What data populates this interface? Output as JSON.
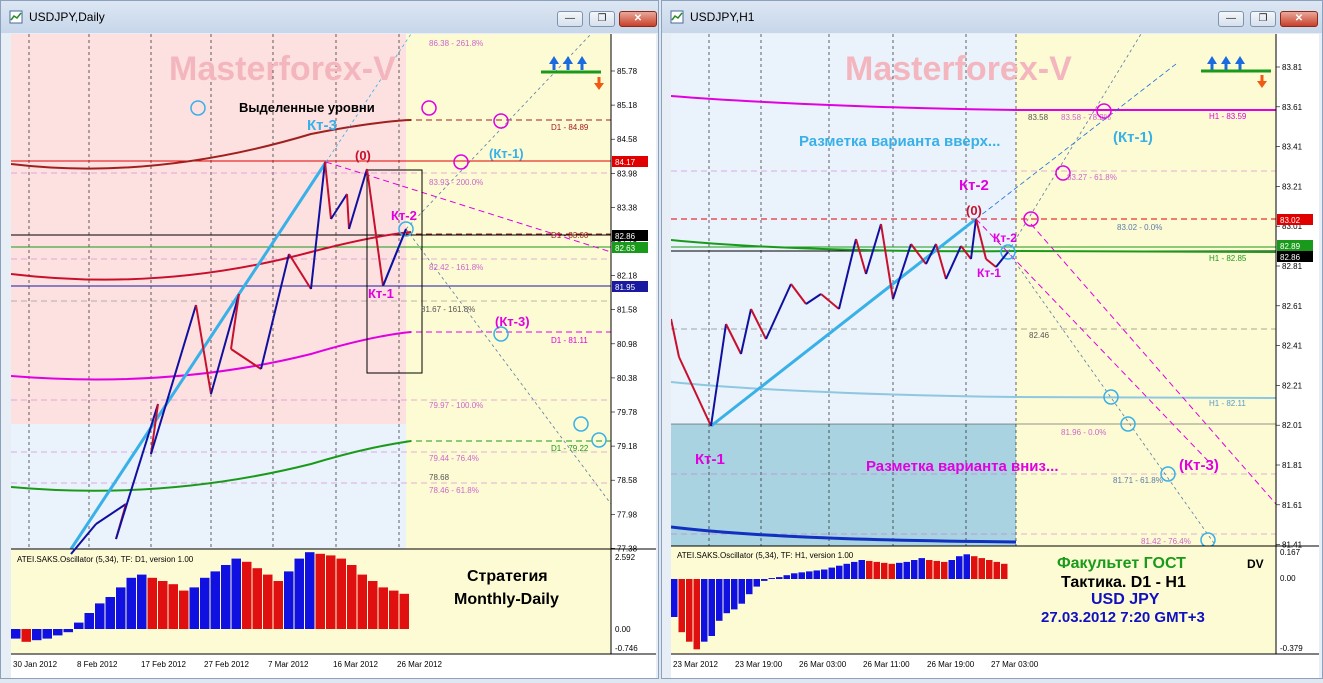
{
  "left_window": {
    "title": "USDJPY,Daily",
    "watermark": "Masterforex-V",
    "annotation_levels": "Выделенные уровни",
    "kt3": "Кт-3",
    "zero": "(0)",
    "kt2": "Кт-2",
    "kt1": "Кт-1",
    "kt1_paren": "(Кт-1)",
    "kt3_paren": "(Кт-3)",
    "fib_labels": [
      "86.38 - 261.8%",
      "83.93 - 200.0%",
      "82.42 - 161.8%",
      "81.67 - 161.8%",
      "79.97 - 100.0%",
      "79.44 - 76.4%",
      "78.68",
      "78.46 - 61.8%"
    ],
    "d1_labels": [
      "D1 - 84.89",
      "D1 - 83.00",
      "D1 - 81.11",
      "D1 - 79.22"
    ],
    "price_axis": [
      "85.78",
      "85.18",
      "84.58",
      "83.98",
      "83.38",
      "82.78",
      "82.18",
      "81.58",
      "80.98",
      "80.38",
      "79.78",
      "79.18",
      "78.58",
      "77.98",
      "77.38"
    ],
    "price_tags": [
      {
        "text": "84.17",
        "color": "#e00000"
      },
      {
        "text": "82.86",
        "color": "#000000"
      },
      {
        "text": "82.63",
        "color": "#1a9a1a"
      },
      {
        "text": "81.95",
        "color": "#1a1aa0"
      }
    ],
    "oscillator_label": "ATEI.SAKS.Oscillator (5,34), TF: D1, version 1.00",
    "oscillator_axis": [
      "2.592",
      "0.00",
      "-0.746"
    ],
    "strategy_line1": "Стратегия",
    "strategy_line2": "Monthly-Daily",
    "time_axis": [
      "30 Jan 2012",
      "8 Feb 2012",
      "17 Feb 2012",
      "27 Feb 2012",
      "7 Mar 2012",
      "16 Mar 2012",
      "26 Mar 2012"
    ]
  },
  "right_window": {
    "title": "USDJPY,H1",
    "watermark": "Masterforex-V",
    "variant_up": "Разметка варианта вверх...",
    "variant_down": "Разметка варианта вниз...",
    "kt2": "Кт-2",
    "zero": "(0)",
    "kt2b": "Кт-2",
    "kt1": "Кт-1",
    "kt1_left": "Кт-1",
    "kt1_paren": "(Кт-1)",
    "kt3_paren": "(Кт-3)",
    "fib_labels": [
      "83.58",
      "83.58 - 78.2%",
      "83.27 - 61.8%",
      "83.02 - 0.0%",
      "82.46",
      "81.96 - 0.0%",
      "81.71 - 61.8%",
      "81.42 - 76.4%"
    ],
    "h1_labels": [
      "H1 - 83.59",
      "H1 - 82.85",
      "H1 - 82.11"
    ],
    "price_axis": [
      "83.81",
      "83.61",
      "83.41",
      "83.21",
      "83.01",
      "82.81",
      "82.61",
      "82.41",
      "82.21",
      "82.01",
      "81.81",
      "81.61",
      "81.41"
    ],
    "price_tags": [
      {
        "text": "83.02",
        "color": "#e00000"
      },
      {
        "text": "82.89",
        "color": "#1a9a1a"
      },
      {
        "text": "82.86",
        "color": "#000000"
      }
    ],
    "oscillator_label": "ATEI.SAKS.Oscillator (5,34), TF: H1, version 1.00",
    "oscillator_axis": [
      "0.167",
      "0.00",
      "-0.379"
    ],
    "faculty": "Факультет ГОСТ",
    "dv": "DV",
    "tactic": "Тактика. D1 - H1",
    "pair": "USD JPY",
    "datetime": "27.03.2012 7:20 GMT+3",
    "time_axis": [
      "23 Mar 2012",
      "23 Mar 19:00",
      "26 Mar 03:00",
      "26 Mar 11:00",
      "26 Mar 19:00",
      "27 Mar 03:00"
    ]
  },
  "window_buttons": {
    "minimize": "—",
    "restore": "❐",
    "close": "✕"
  },
  "colors": {
    "bull": "#1010a0",
    "bear": "#c8102e",
    "trend": "#38b0e8",
    "magenta": "#e000e0",
    "green": "#1a9a1a",
    "fib": "#cc66cc",
    "watermark": "#f4b6be"
  }
}
